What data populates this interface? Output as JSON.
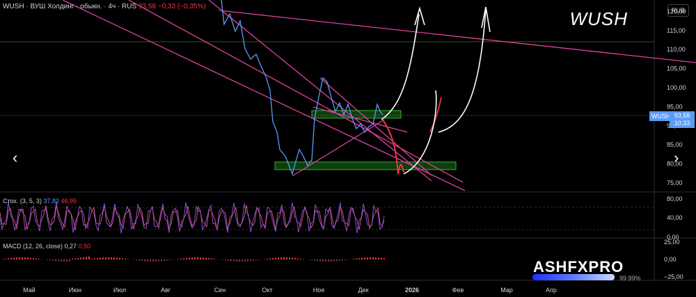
{
  "header": {
    "symbol": "WUSH",
    "description": "ВУШ Холдинг · обыкн.",
    "interval": "4ч",
    "exchange": "RUS",
    "price": "93,58",
    "change": "−0,33 (−0,35%)"
  },
  "watermark_title": "WUSH",
  "currency": "RUB",
  "price_tag": {
    "symbol": "WUSH",
    "price": "93,58",
    "countdown": "10:33"
  },
  "stoch": {
    "label": "Стох. (3, 5, 3)",
    "k": "37,82",
    "d": "46,95"
  },
  "macd": {
    "label": "MACD (12, 26, close)",
    "value": "0,27",
    "signal": "0,50"
  },
  "branding": {
    "logo": "ASHFXPRO",
    "percent": "99.99%"
  },
  "nav": {
    "left": "‹",
    "right": "›"
  },
  "chart_data": {
    "type": "line",
    "x_axis_labels": [
      "Май",
      "Июн",
      "Июл",
      "Авг",
      "Сен",
      "Окт",
      "Ноя",
      "Дек",
      "2026",
      "Фев",
      "Мар",
      "Апр"
    ],
    "price_axis_ticks": [
      "120,00",
      "115,00",
      "110,00",
      "105,00",
      "100,00",
      "95,00",
      "90,00",
      "85,00",
      "80,00",
      "75,00"
    ],
    "stoch_axis_ticks": [
      "80,00",
      "40,00",
      "0,00"
    ],
    "macd_axis_ticks": [
      "25,00",
      "0,00",
      "−25,00"
    ],
    "price_ylim": [
      73,
      123
    ],
    "series": [
      {
        "x": [
          "Сен",
          "Сен",
          "Окт",
          "Окт",
          "Ноя",
          "Ноя",
          "Дек",
          "Дек"
        ],
        "values": [
          123,
          118,
          80,
          78,
          104,
          95,
          90,
          93.58
        ]
      }
    ],
    "support_zones": [
      [
        92,
        94
      ],
      [
        78.5,
        80.5
      ]
    ],
    "colors": {
      "price": "#5b9cf6",
      "trend": "#e040a0",
      "zone": "#1f8a1f",
      "stoch": "#8e4fd6",
      "forecast_up": "#ffffff",
      "forecast_down": "#f23645"
    }
  }
}
